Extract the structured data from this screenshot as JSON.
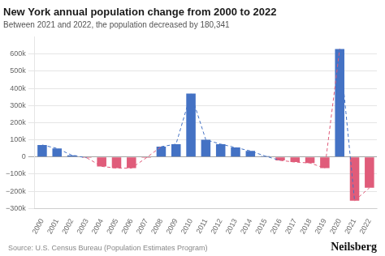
{
  "chart_data": {
    "type": "bar",
    "title": "New York annual population change from 2000 to 2022",
    "subtitle": "Between 2021 and 2022, the population decreased by 180,341",
    "source": "Source: U.S. Census Bureau (Population Estimates Program)",
    "branding": "Neilsberg",
    "categories": [
      "2000",
      "2001",
      "2002",
      "2003",
      "2004",
      "2005",
      "2006",
      "2007",
      "2008",
      "2009",
      "2010",
      "2011",
      "2012",
      "2013",
      "2014",
      "2015",
      "2016",
      "2017",
      "2018",
      "2019",
      "2020",
      "2021",
      "2022"
    ],
    "values": [
      70000,
      50000,
      10000,
      -5000,
      -55000,
      -65000,
      -65000,
      -5000,
      60000,
      75000,
      370000,
      100000,
      75000,
      55000,
      35000,
      5000,
      -20000,
      -30000,
      -35000,
      -65000,
      630000,
      -255000,
      -180000
    ],
    "colors": [
      "#4472c4",
      "#4472c4",
      "#4472c4",
      "#e05c7a",
      "#e05c7a",
      "#e05c7a",
      "#e05c7a",
      "#e05c7a",
      "#4472c4",
      "#4472c4",
      "#4472c4",
      "#4472c4",
      "#4472c4",
      "#4472c4",
      "#4472c4",
      "#4472c4",
      "#e05c7a",
      "#e05c7a",
      "#e05c7a",
      "#e05c7a",
      "#4472c4",
      "#e05c7a",
      "#e05c7a"
    ],
    "line_style": "dashed",
    "ylim": [
      -300000,
      700000
    ],
    "yticks": [
      {
        "value": -300000,
        "label": "−300k"
      },
      {
        "value": -200000,
        "label": "−200k"
      },
      {
        "value": -100000,
        "label": "−100k"
      },
      0,
      {
        "value": 100000,
        "label": "100k"
      },
      {
        "value": 200000,
        "label": "200k"
      },
      {
        "value": 300000,
        "label": "300k"
      },
      {
        "value": 400000,
        "label": "400k"
      },
      {
        "value": 500000,
        "label": "500k"
      },
      {
        "value": 600000,
        "label": "600k"
      }
    ],
    "grid": true
  }
}
